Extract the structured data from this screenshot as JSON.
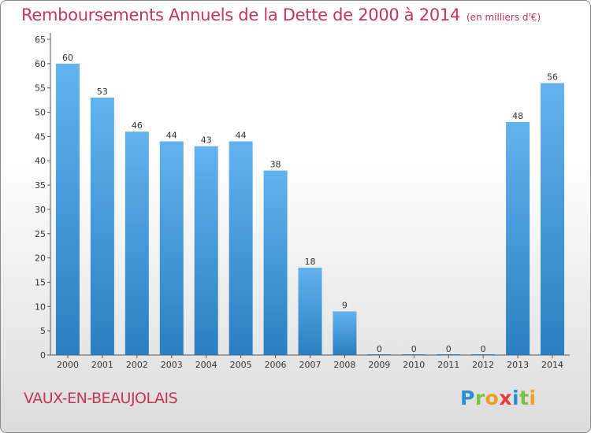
{
  "header": {
    "title": "Remboursements Annuels de la Dette de 2000 à 2014",
    "subtitle": "(en milliers d'€)"
  },
  "footer": {
    "commune": "VAUX-EN-BEAUJOLAIS",
    "logo_letters": [
      "P",
      "r",
      "o",
      "x",
      "i",
      "t",
      "i"
    ],
    "logo_colors": [
      "#2a8fd0",
      "#7cc242",
      "#f0a020",
      "#e23c3c",
      "#2a8fd0",
      "#7cc242",
      "#f0a020"
    ]
  },
  "chart_data": {
    "type": "bar",
    "title": "Remboursements Annuels de la Dette de 2000 à 2014",
    "categories": [
      "2000",
      "2001",
      "2002",
      "2003",
      "2004",
      "2005",
      "2006",
      "2007",
      "2008",
      "2009",
      "2010",
      "2011",
      "2012",
      "2013",
      "2014"
    ],
    "values": [
      60,
      53,
      46,
      44,
      43,
      44,
      38,
      18,
      9,
      0,
      0,
      0,
      0,
      48,
      56
    ],
    "data_labels": [
      "60",
      "53",
      "46",
      "44",
      "43",
      "44",
      "38",
      "18",
      "9",
      "0",
      "0",
      "0",
      "0",
      "48",
      "56"
    ],
    "ylim": [
      0,
      65
    ],
    "yticks": [
      0,
      5,
      10,
      15,
      20,
      25,
      30,
      35,
      40,
      45,
      50,
      55,
      60,
      65
    ],
    "grid": false,
    "bar_color_light": "#62b3ee",
    "bar_color_dark": "#2a7fc0",
    "axis_color": "#555555"
  }
}
